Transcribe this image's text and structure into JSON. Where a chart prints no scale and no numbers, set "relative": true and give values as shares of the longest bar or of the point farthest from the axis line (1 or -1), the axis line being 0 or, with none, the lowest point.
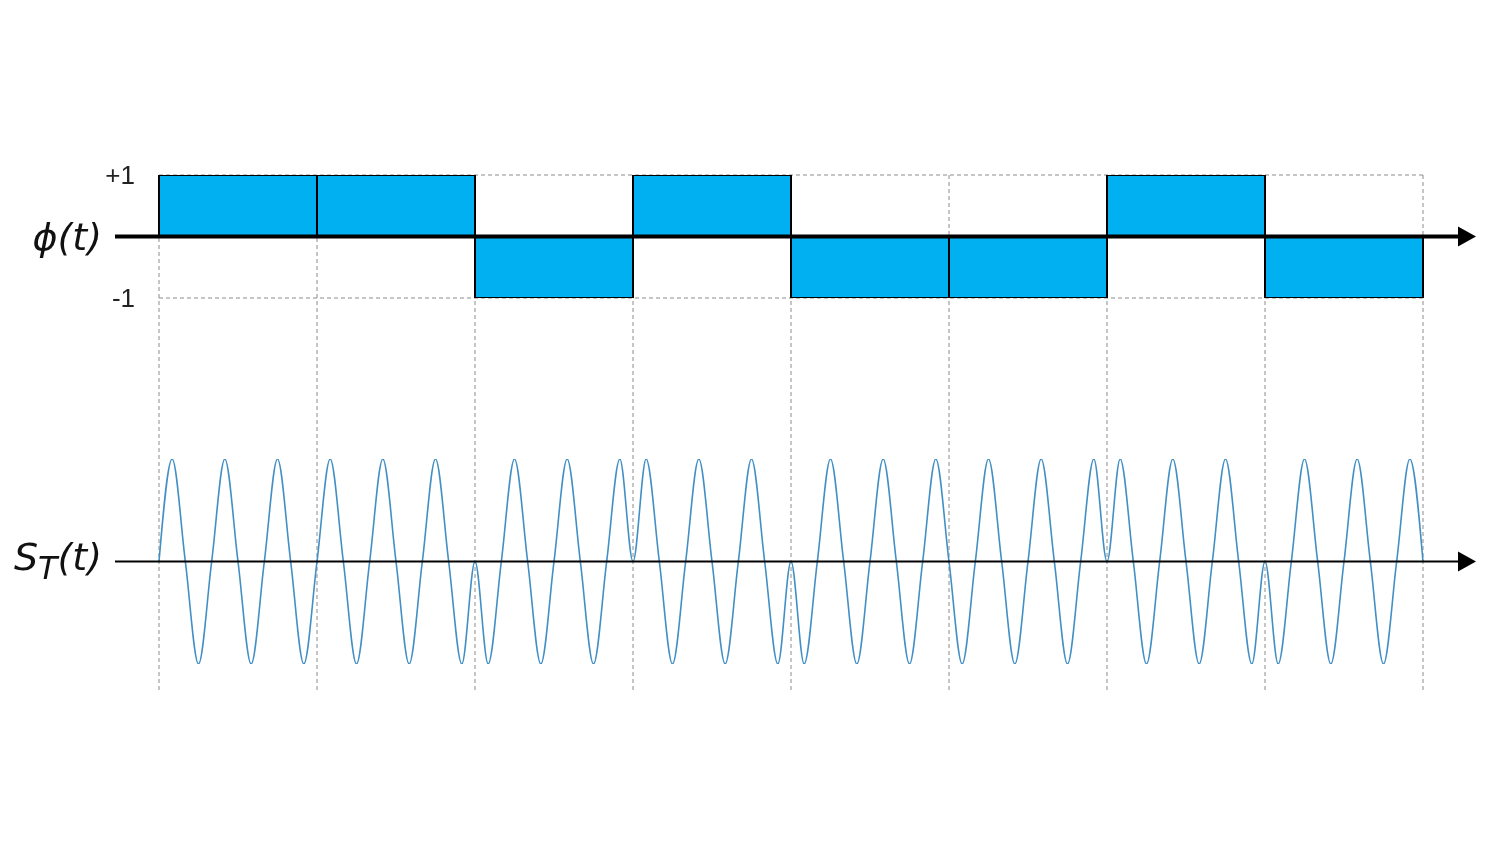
{
  "chart_data": [
    {
      "type": "bar",
      "ylabel": "ϕ(t)",
      "categories": [
        null,
        null,
        null,
        null,
        null,
        null,
        null,
        null
      ],
      "values": [
        1,
        1,
        -1,
        1,
        -1,
        -1,
        1,
        -1
      ],
      "color": "#00b0f0",
      "ylim": [
        -1,
        1
      ],
      "yticks": [
        {
          "value": 1,
          "label": "+1"
        },
        -1
      ],
      "grid": true,
      "tick_labels": "y"
    },
    {
      "type": "line",
      "ylabel": "S$_{T}$(t)",
      "categories": [
        null,
        null,
        null,
        null,
        null,
        null,
        null,
        null,
        null,
        null,
        null,
        null,
        null,
        null,
        null,
        null,
        null,
        null,
        null,
        null,
        null,
        null,
        null,
        null,
        null,
        null,
        null,
        null,
        null,
        null,
        null,
        null,
        null,
        null,
        null,
        null,
        null,
        null,
        null,
        null,
        null,
        null,
        null,
        null,
        null,
        null,
        null,
        null,
        null,
        null,
        null,
        null,
        null,
        null,
        null,
        null,
        null,
        null,
        null,
        null,
        null,
        null,
        null,
        null,
        null,
        null,
        null,
        null,
        null,
        null,
        null,
        null,
        null,
        null,
        null,
        null,
        null,
        null,
        null,
        null,
        null,
        null,
        null,
        null,
        null,
        null,
        null,
        null,
        null,
        null,
        null,
        null,
        null,
        null,
        null,
        null,
        null
      ],
      "values": [
        0,
        1,
        0,
        -1,
        0,
        1,
        0,
        -1,
        0,
        1,
        0,
        -1,
        0,
        1,
        0,
        -1,
        0,
        1,
        0,
        -1,
        0,
        1,
        0,
        -1,
        0,
        -1,
        0,
        1,
        0,
        -1,
        0,
        1,
        0,
        -1,
        0,
        1,
        0,
        1,
        0,
        -1,
        0,
        1,
        0,
        -1,
        0,
        1,
        0,
        -1,
        0,
        -1,
        0,
        1,
        0,
        -1,
        0,
        1,
        0,
        -1,
        0,
        1,
        0,
        -1,
        0,
        1,
        0,
        -1,
        0,
        1,
        0,
        -1,
        0,
        1,
        0,
        1,
        0,
        -1,
        0,
        1,
        0,
        -1,
        0,
        1,
        0,
        -1,
        0,
        -1,
        0,
        1,
        0,
        -1,
        0,
        1,
        0,
        -1,
        0,
        1,
        0
      ],
      "color": "#418fc4",
      "relative": true,
      "tick_labels": false
    }
  ]
}
